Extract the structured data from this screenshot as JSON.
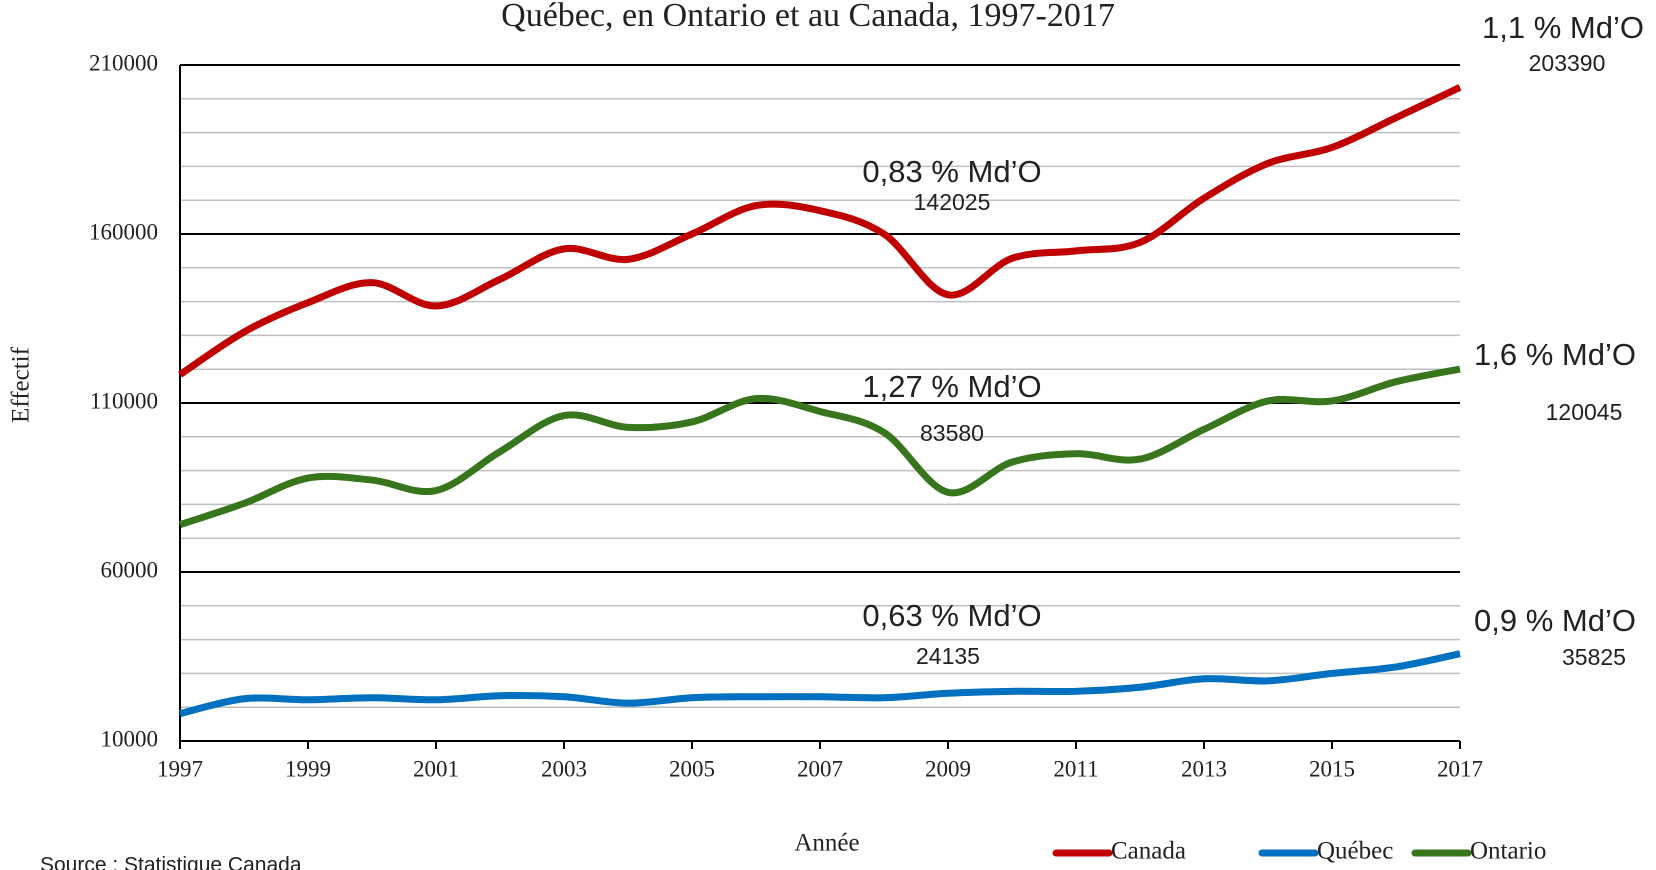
{
  "chart_data": {
    "type": "line",
    "title": "Québec, en Ontario et au Canada, 1997-2017",
    "x_label": "Année",
    "y_label": "Effectif",
    "source": "Source : Statistique Canada",
    "x": [
      1997,
      1998,
      1999,
      2000,
      2001,
      2002,
      2003,
      2004,
      2005,
      2006,
      2007,
      2008,
      2009,
      2010,
      2011,
      2012,
      2013,
      2014,
      2015,
      2016,
      2017
    ],
    "xlim": [
      1997,
      2017
    ],
    "xticks": [
      1997,
      1999,
      2001,
      2003,
      2005,
      2007,
      2009,
      2011,
      2013,
      2015,
      2017
    ],
    "ylim": [
      10000,
      210000
    ],
    "yticks": [
      10000,
      60000,
      110000,
      160000,
      210000
    ],
    "yminor_ticks": [
      20000,
      30000,
      40000,
      50000,
      70000,
      80000,
      90000,
      100000,
      120000,
      130000,
      140000,
      150000,
      170000,
      180000,
      190000,
      200000
    ],
    "grid": true,
    "legend": "bottom-right",
    "series": [
      {
        "name": "Canada",
        "color": "#c00000",
        "values": [
          118400,
          131000,
          139700,
          145600,
          138700,
          146600,
          155600,
          152500,
          160000,
          168400,
          166900,
          160000,
          142025,
          152800,
          155000,
          157500,
          170600,
          180900,
          185600,
          194400,
          203390
        ]
      },
      {
        "name": "Québec",
        "color": "#0070c0",
        "values": [
          18100,
          22500,
          22200,
          22800,
          22200,
          23400,
          23100,
          21200,
          22800,
          23100,
          23100,
          22800,
          24135,
          24700,
          24700,
          25900,
          28400,
          27800,
          30000,
          31900,
          35825
        ]
      },
      {
        "name": "Ontario",
        "color": "#38761d",
        "values": [
          74000,
          80300,
          87800,
          87200,
          84100,
          95600,
          106300,
          102800,
          104400,
          111300,
          107500,
          101300,
          83580,
          92500,
          95000,
          93400,
          102200,
          110600,
          110600,
          116300,
          120045
        ]
      }
    ],
    "annotations": [
      "1,1 % Md’O",
      "0,83 % Md’O",
      "1,6 % Md’O",
      "1,27 % Md’O",
      "0,9 % Md’O",
      "0,63 % Md’O"
    ]
  }
}
